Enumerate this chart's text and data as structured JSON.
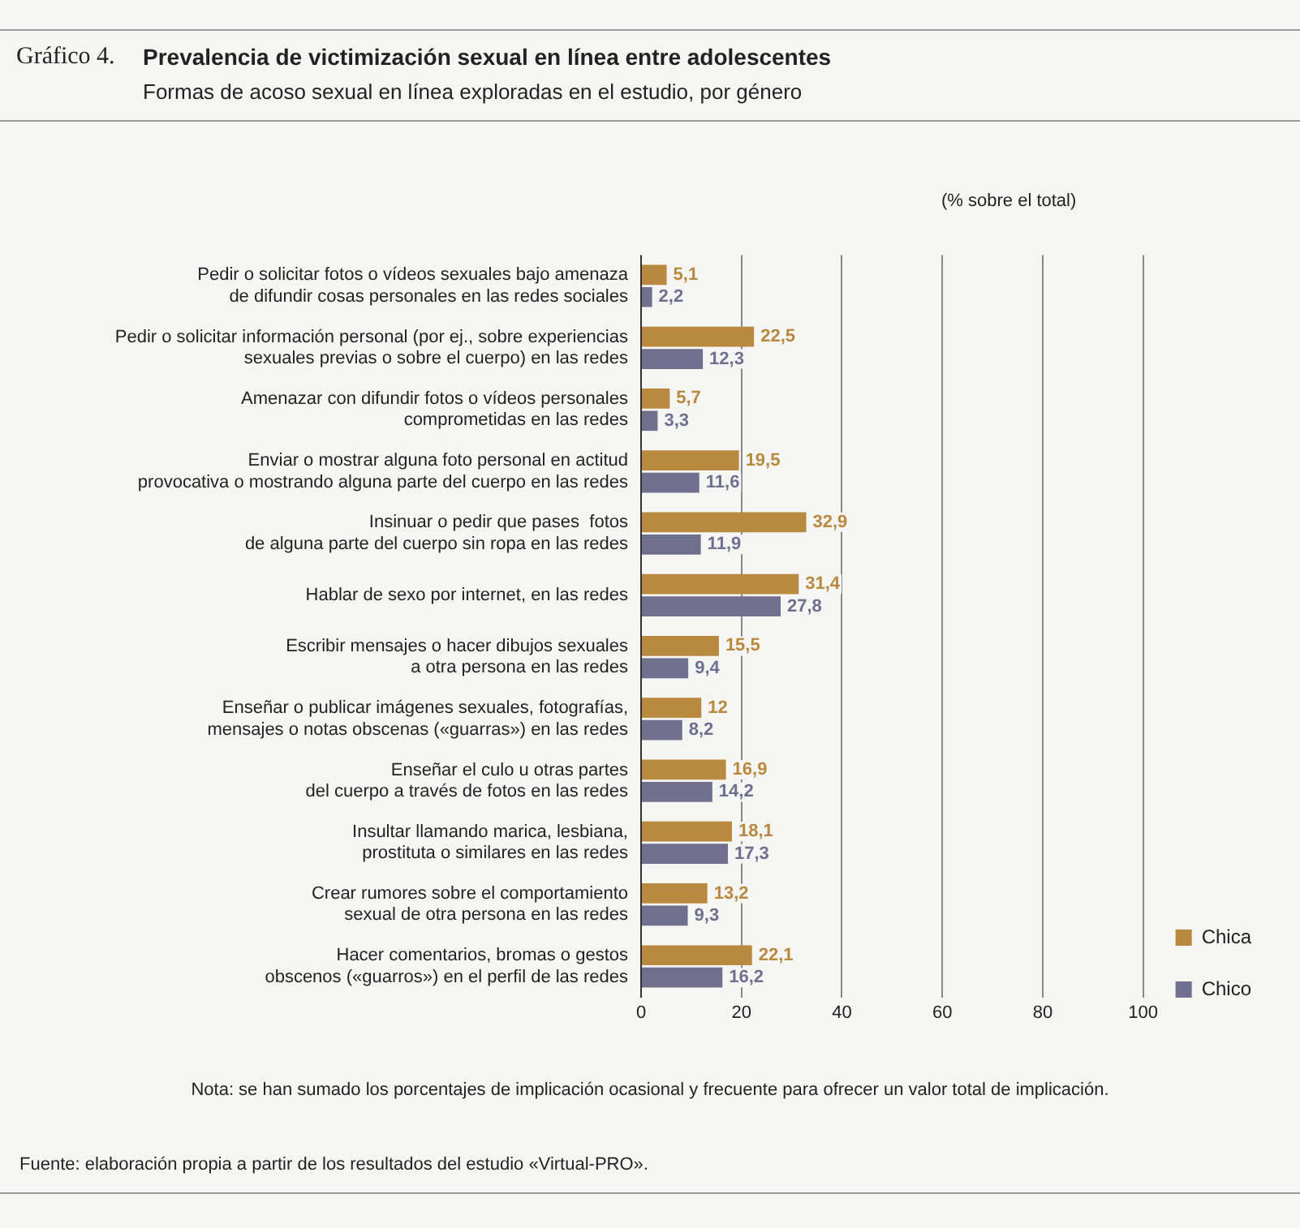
{
  "chart_data": {
    "type": "bar",
    "orientation": "horizontal",
    "title": "Prevalencia de victimización sexual en línea entre adolescentes",
    "subtitle": "Formas de acoso sexual en línea exploradas en el estudio, por género",
    "categories": [
      "Pedir o solicitar fotos o vídeos sexuales bajo amenaza\nde difundir cosas personales en las redes sociales",
      "Pedir o solicitar información personal (por ej., sobre experiencias\nsexuales previas o sobre el cuerpo) en las redes",
      "Amenazar con difundir fotos o vídeos personales\ncomprometidas en las redes",
      "Enviar o mostrar alguna foto personal en actitud\nprovocativa o mostrando alguna parte del cuerpo en las redes",
      "Insinuar o pedir que pases  fotos\nde alguna parte del cuerpo sin ropa en las redes",
      "Hablar de sexo por internet, en las redes",
      "Escribir mensajes o hacer dibujos sexuales\na otra persona en las redes",
      "Enseñar o publicar imágenes sexuales, fotografías,\nmensajes o notas obscenas («guarras») en las redes",
      "Enseñar el culo u otras partes\ndel cuerpo a través de fotos en las redes",
      "Insultar llamando marica, lesbiana,\nprostituta o similares en las redes",
      "Crear rumores sobre el comportamiento\nsexual de otra persona en las redes",
      "Hacer comentarios, bromas o gestos\nobscenos («guarros») en el perfil de las redes"
    ],
    "series": [
      {
        "name": "Chica",
        "color": "#b8893e",
        "values": [
          5.1,
          22.5,
          5.7,
          19.5,
          32.9,
          31.4,
          15.5,
          12,
          16.9,
          18.1,
          13.2,
          22.1
        ],
        "value_labels": [
          "5,1",
          "22,5",
          "5,7",
          "19,5",
          "32,9",
          "31,4",
          "15,5",
          "12",
          "16,9",
          "18,1",
          "13,2",
          "22,1"
        ]
      },
      {
        "name": "Chico",
        "color": "#6f6f8e",
        "values": [
          2.2,
          12.3,
          3.3,
          11.6,
          11.9,
          27.8,
          9.4,
          8.2,
          14.2,
          17.3,
          9.3,
          16.2
        ],
        "value_labels": [
          "2,2",
          "12,3",
          "3,3",
          "11,6",
          "11,9",
          "27,8",
          "9,4",
          "8,2",
          "14,2",
          "17,3",
          "9,3",
          "16,2"
        ]
      }
    ],
    "xlim": [
      0,
      100
    ],
    "xticks": [
      0,
      20,
      40,
      60,
      80,
      100
    ],
    "grid": "x",
    "legend": "bottom right",
    "annotations": [
      "Gráfico 4.",
      "(% sobre el total)",
      "Nota: se han sumado los porcentajes de implicación ocasional y frecuente para ofrecer un valor total de implicación.",
      "Fuente: elaboración propia a partir de los resultados del estudio «Virtual-PRO»."
    ]
  }
}
